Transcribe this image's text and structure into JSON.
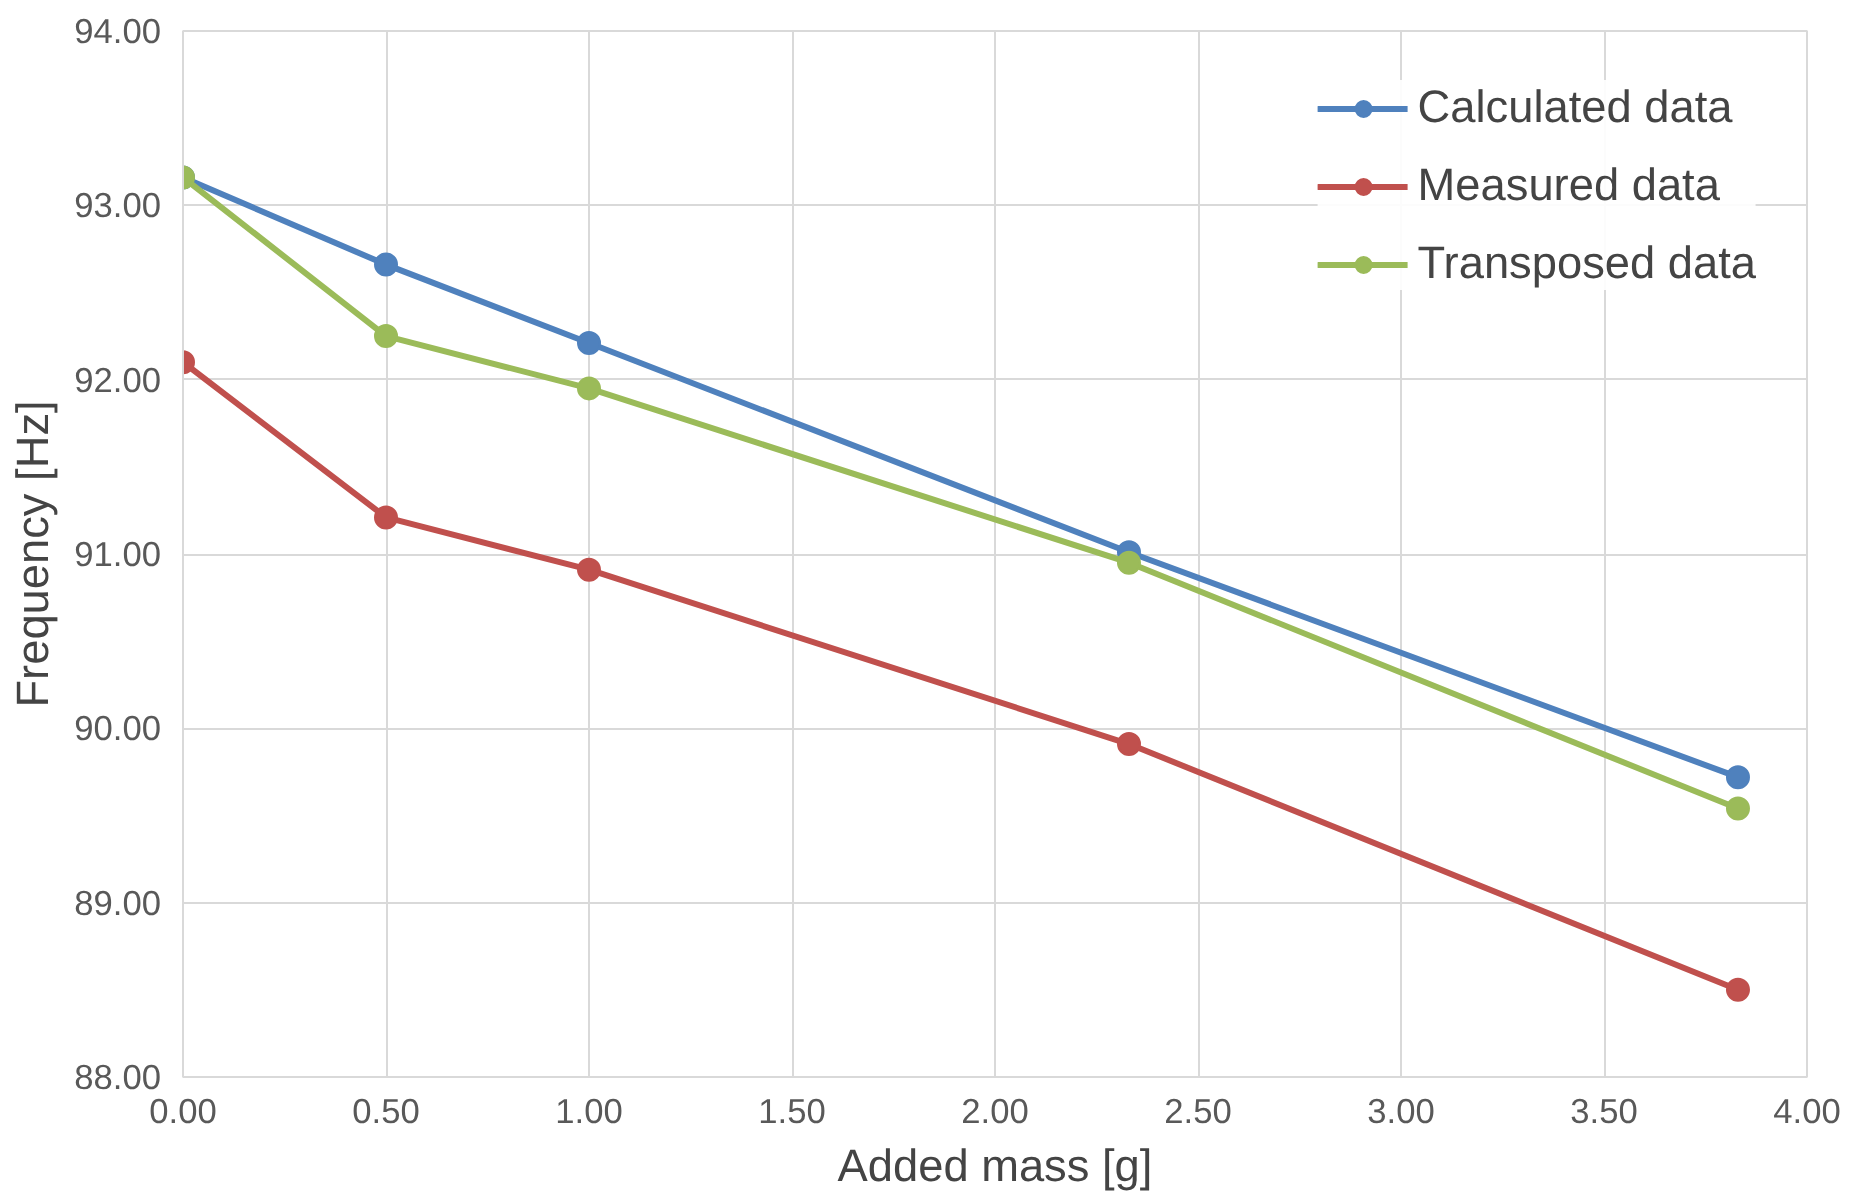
{
  "chart_data": {
    "type": "line",
    "xlabel": "Added mass [g]",
    "ylabel": "Frequency [Hz]",
    "x": [
      0,
      0.5,
      1.0,
      2.33,
      3.83
    ],
    "series": [
      {
        "name": "Calculated data",
        "color": "#4f81bd",
        "values": [
          93.16,
          92.66,
          92.21,
          91.01,
          89.72
        ]
      },
      {
        "name": "Measured data",
        "color": "#c0504d",
        "values": [
          92.1,
          91.21,
          90.91,
          89.91,
          88.5
        ]
      },
      {
        "name": "Transposed data",
        "color": "#9bbb59",
        "values": [
          93.16,
          92.25,
          91.95,
          90.95,
          89.54
        ]
      }
    ],
    "xlim": [
      0,
      4
    ],
    "ylim": [
      88,
      94
    ],
    "xticks": [
      {
        "value": 0,
        "label": "0.00"
      },
      {
        "value": 0.5,
        "label": "0.50"
      },
      {
        "value": 1,
        "label": "1.00"
      },
      {
        "value": 1.5,
        "label": "1.50"
      },
      {
        "value": 2,
        "label": "2.00"
      },
      {
        "value": 2.5,
        "label": "2.50"
      },
      {
        "value": 3,
        "label": "3.00"
      },
      {
        "value": 3.5,
        "label": "3.50"
      },
      {
        "value": 4,
        "label": "4.00"
      }
    ],
    "yticks": [
      {
        "value": 88,
        "label": "88.00"
      },
      {
        "value": 89,
        "label": "89.00"
      },
      {
        "value": 90,
        "label": "90.00"
      },
      {
        "value": 91,
        "label": "91.00"
      },
      {
        "value": 92,
        "label": "92.00"
      },
      {
        "value": 93,
        "label": "93.00"
      },
      {
        "value": 94,
        "label": "94.00"
      }
    ],
    "grid": true,
    "legend": "top right",
    "marker": "circle",
    "line_style": "solid"
  }
}
